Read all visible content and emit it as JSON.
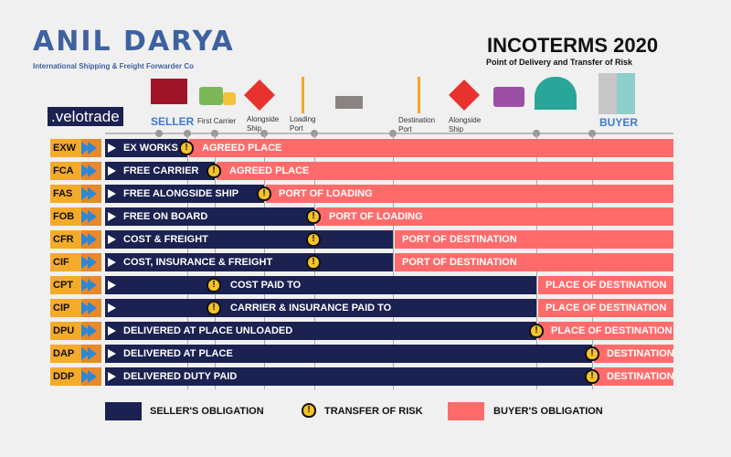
{
  "brand": {
    "name": "ANIL DARYA",
    "tagline": "International Shipping & Freight Forwarder Co",
    "partner": ".velotrade"
  },
  "header": {
    "title": "INCOTERMS 2020",
    "subtitle": "Point of Delivery and Transfer of Risk"
  },
  "stops": {
    "seller": "SELLER",
    "first_carrier": "First Carrier",
    "alongside_ship_1": "Alongside Ship",
    "loading_port": "Loading Port",
    "destination_port": "Destination Port",
    "alongside_ship_2": "Alongside Ship",
    "buyer": "BUYER"
  },
  "rows": [
    {
      "code": "EXW",
      "seller": "EX WORKS",
      "buyer": "AGREED PLACE"
    },
    {
      "code": "FCA",
      "seller": "FREE CARRIER",
      "buyer": "AGREED PLACE"
    },
    {
      "code": "FAS",
      "seller": "FREE ALONGSIDE SHIP",
      "buyer": "PORT OF LOADING"
    },
    {
      "code": "FOB",
      "seller": "FREE ON BOARD",
      "buyer": "PORT OF LOADING"
    },
    {
      "code": "CFR",
      "seller": "COST & FREIGHT",
      "buyer": "PORT OF DESTINATION"
    },
    {
      "code": "CIF",
      "seller": "COST, INSURANCE & FREIGHT",
      "buyer": "PORT OF DESTINATION"
    },
    {
      "code": "CPT",
      "seller": "COST PAID TO",
      "buyer": "PLACE OF DESTINATION"
    },
    {
      "code": "CIP",
      "seller": "CARRIER & INSURANCE PAID TO",
      "buyer": "PLACE OF DESTINATION"
    },
    {
      "code": "DPU",
      "seller": "DELIVERED AT PLACE UNLOADED",
      "buyer": "PLACE OF DESTINATION"
    },
    {
      "code": "DAP",
      "seller": "DELIVERED AT PLACE",
      "buyer": "DESTINATION"
    },
    {
      "code": "DDP",
      "seller": "DELIVERED DUTY PAID",
      "buyer": "DESTINATION"
    }
  ],
  "legend": {
    "seller": "SELLER'S OBLIGATION",
    "risk": "TRANSFER OF RISK",
    "buyer": "BUYER'S OBLIGATION"
  },
  "colors": {
    "seller": "#1b2150",
    "buyer": "#ff6b6b",
    "risk": "#f6c22b",
    "code": "#f4ab2a"
  }
}
